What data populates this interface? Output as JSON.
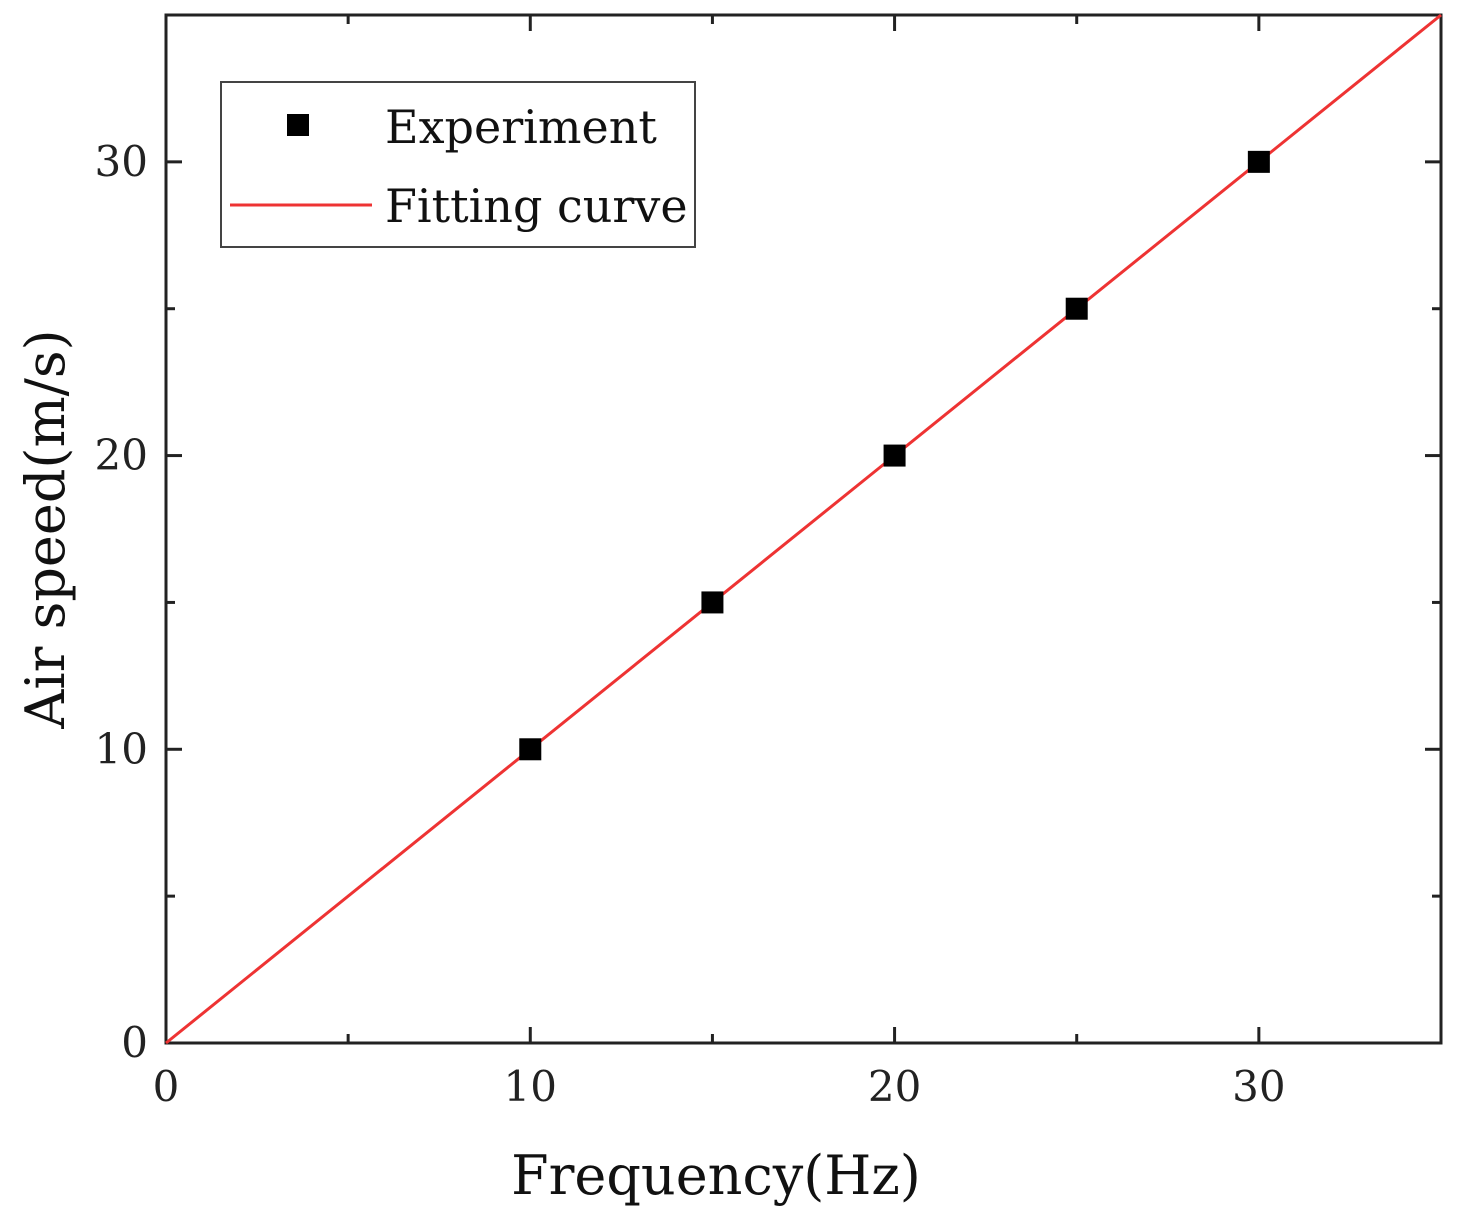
{
  "chart_data": {
    "type": "scatter",
    "title": "",
    "xlabel": "Frequency(Hz)",
    "ylabel": "Air speed(m/s)",
    "xlim": [
      0,
      35
    ],
    "ylim": [
      0,
      35
    ],
    "x_ticks": [
      0,
      10,
      20,
      30
    ],
    "y_ticks": [
      0,
      10,
      20,
      30
    ],
    "x_tick_labels": [
      "0",
      "10",
      "20",
      "30"
    ],
    "y_tick_labels": [
      "0",
      "10",
      "20",
      "30"
    ],
    "x_minor_ticks": [
      5,
      15,
      25,
      35
    ],
    "y_minor_ticks": [
      5,
      15,
      25
    ],
    "grid": false,
    "legend_position": "top-left",
    "series": [
      {
        "name": "Experiment",
        "kind": "scatter",
        "marker": "square",
        "color": "#000000",
        "x": [
          10,
          15,
          20,
          25,
          30
        ],
        "y": [
          10,
          15,
          20,
          25,
          30
        ]
      },
      {
        "name": "Fitting curve",
        "kind": "line",
        "color": "#ee3333",
        "x": [
          0,
          35
        ],
        "y": [
          0,
          35
        ]
      }
    ]
  }
}
